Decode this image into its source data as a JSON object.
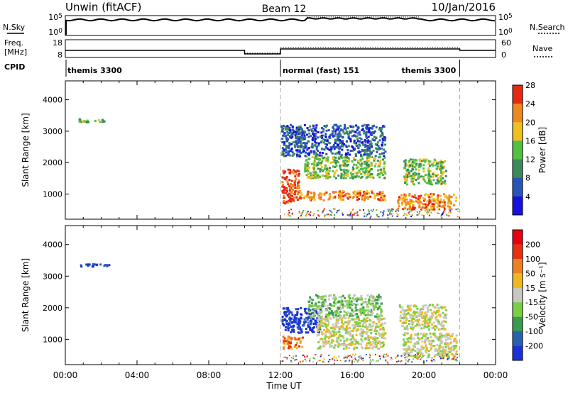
{
  "header": {
    "title": "Unwin (fitACF)",
    "beam": "Beam 12",
    "date": "10/Jan/2016"
  },
  "nsky_panel": {
    "left_label": "N.Sky",
    "right_label": "N.Search",
    "left_ticks": [
      "10^5",
      "10^0"
    ],
    "right_ticks": [
      "10^5",
      "10^0"
    ]
  },
  "freq_panel": {
    "left_label_1": "Freq.",
    "left_label_2": "[MHz]",
    "right_label": "Nave",
    "left_ticks": [
      "18",
      "8"
    ],
    "right_ticks": [
      "60",
      "0"
    ]
  },
  "cpid": {
    "label": "CPID",
    "segments": [
      {
        "name": "themis 3300",
        "start_hour": 0,
        "end_hour": 12
      },
      {
        "name": "normal (fast) 151",
        "start_hour": 12,
        "end_hour": 22
      },
      {
        "name": "themis 3300",
        "start_hour": 22,
        "end_hour": 24
      }
    ]
  },
  "chart_data": [
    {
      "type": "heatmap",
      "panel": "power",
      "ylabel": "Slant Range [km]",
      "xlabel": "",
      "xlim": [
        0,
        24
      ],
      "ylim": [
        200,
        4600
      ],
      "yticks": [
        1000,
        2000,
        3000,
        4000
      ],
      "colorbar": {
        "label": "Power [dB]",
        "ticks": [
          4,
          8,
          12,
          16,
          20,
          24,
          28
        ],
        "colors": [
          "#1a10e0",
          "#2a55b8",
          "#3c8a5a",
          "#52c040",
          "#f0c020",
          "#f08820",
          "#e82810"
        ]
      },
      "regions": [
        {
          "t0": 12.05,
          "t1": 13.0,
          "r0": 700,
          "r1": 1800,
          "level": 6
        },
        {
          "t0": 13.0,
          "t1": 17.8,
          "r0": 800,
          "r1": 1100,
          "level": 5
        },
        {
          "t0": 13.3,
          "t1": 17.8,
          "r0": 1500,
          "r1": 2200,
          "level": 3
        },
        {
          "t0": 12.0,
          "t1": 17.8,
          "r0": 2200,
          "r1": 3200,
          "level": 1
        },
        {
          "t0": 18.5,
          "t1": 21.8,
          "r0": 500,
          "r1": 1000,
          "level": 5
        },
        {
          "t0": 18.8,
          "t1": 21.2,
          "r0": 1300,
          "r1": 2100,
          "level": 3
        },
        {
          "t0": 0.6,
          "t1": 2.2,
          "r0": 3280,
          "r1": 3380,
          "level": 3
        }
      ]
    },
    {
      "type": "heatmap",
      "panel": "velocity",
      "ylabel": "Slant Range [km]",
      "xlabel": "Time UT",
      "xlim": [
        0,
        24
      ],
      "ylim": [
        200,
        4600
      ],
      "xticks": [
        "00:00",
        "04:00",
        "08:00",
        "12:00",
        "16:00",
        "20:00",
        "00:00"
      ],
      "yticks": [
        1000,
        2000,
        3000,
        4000
      ],
      "colorbar": {
        "label": "Velocity [m s⁻¹]",
        "ticks": [
          200,
          100,
          50,
          15,
          -15,
          -50,
          -100,
          -200
        ],
        "colors": [
          "#1a30d8",
          "#2a60b0",
          "#3a9a50",
          "#7ad040",
          "#c8c8c0",
          "#f0b820",
          "#f08020",
          "#e83010",
          "#e80010"
        ]
      },
      "regions": [
        {
          "t0": 12.05,
          "t1": 14.2,
          "r0": 1200,
          "r1": 2000,
          "level": 0
        },
        {
          "t0": 12.1,
          "t1": 13.2,
          "r0": 700,
          "r1": 1100,
          "level": 6
        },
        {
          "t0": 14.0,
          "t1": 17.8,
          "r0": 700,
          "r1": 1700,
          "level": 4
        },
        {
          "t0": 13.5,
          "t1": 17.6,
          "r0": 1700,
          "r1": 2400,
          "level": 3
        },
        {
          "t0": 18.8,
          "t1": 21.8,
          "r0": 400,
          "r1": 1200,
          "level": 4
        },
        {
          "t0": 18.6,
          "t1": 21.2,
          "r0": 1300,
          "r1": 2100,
          "level": 4
        },
        {
          "t0": 0.6,
          "t1": 2.4,
          "r0": 3280,
          "r1": 3380,
          "level": 0
        }
      ]
    }
  ]
}
